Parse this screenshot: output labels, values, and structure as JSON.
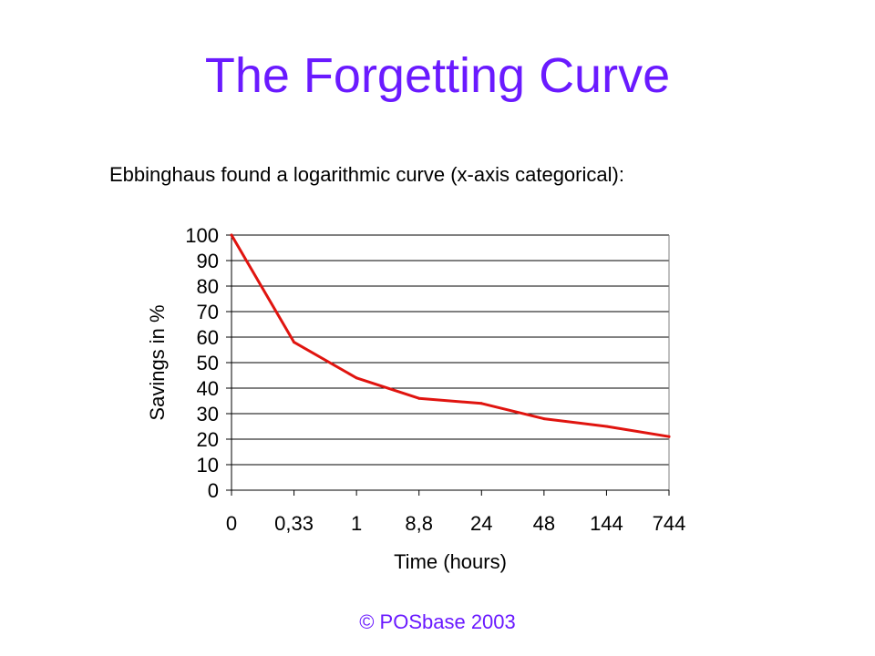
{
  "slide": {
    "title": "The Forgetting Curve",
    "subtitle": "Ebbinghaus found a logarithmic curve (x-axis categorical):",
    "footer": "© POSbase 2003"
  },
  "colors": {
    "title": "#6a1aff",
    "line": "#e0140f",
    "grid": "#000000",
    "text": "#000000"
  },
  "chart_data": {
    "type": "line",
    "title": "",
    "xlabel": "Time (hours)",
    "ylabel": "Savings in %",
    "categories": [
      "0",
      "0,33",
      "1",
      "8,8",
      "24",
      "48",
      "144",
      "744"
    ],
    "values": [
      100,
      58,
      44,
      36,
      34,
      28,
      25,
      21
    ],
    "ylim": [
      0,
      100
    ],
    "yticks": [
      0,
      10,
      20,
      30,
      40,
      50,
      60,
      70,
      80,
      90,
      100
    ],
    "grid": "horizontal",
    "legend": "none"
  }
}
